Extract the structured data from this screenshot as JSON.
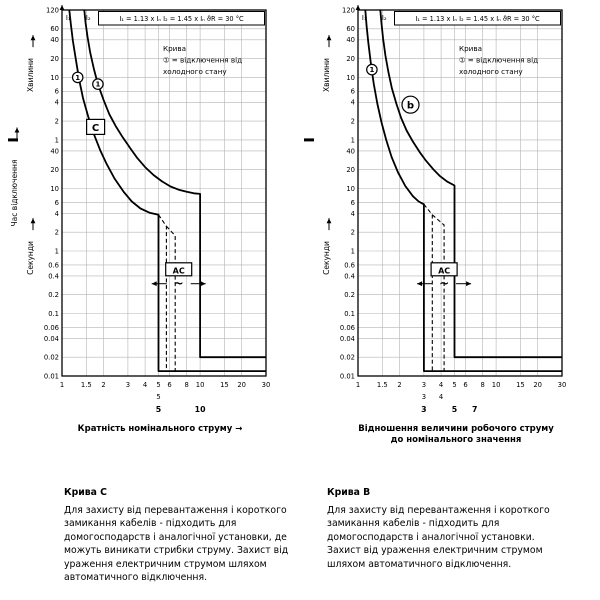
{
  "chart_data": [
    {
      "id": "curve-c-chart",
      "type": "line",
      "header": {
        "i1": "I₁",
        "i2": "I₂",
        "formula": "I₁ = 1.13 x Iₙ  I₂ = 1.45 x Iₙ  ϑR = 30 °C"
      },
      "note_lines": [
        "Крива",
        "① = відключення від",
        "холодного стану"
      ],
      "x_axis": {
        "label": "Кратність номінального струму  →",
        "scale": "log",
        "min": 1,
        "max": 30,
        "ticks": [
          {
            "v": 1,
            "l": "1"
          },
          {
            "v": 1.5,
            "l": "1.5"
          },
          {
            "v": 2,
            "l": "2"
          },
          {
            "v": 3,
            "l": "3"
          },
          {
            "v": 4,
            "l": "4"
          },
          {
            "v": 5,
            "l": "5"
          },
          {
            "v": 6,
            "l": "6"
          },
          {
            "v": 8,
            "l": "8"
          },
          {
            "v": 10,
            "l": "10"
          },
          {
            "v": 15,
            "l": "15"
          },
          {
            "v": 20,
            "l": "20"
          },
          {
            "v": 30,
            "l": "30"
          }
        ]
      },
      "y_axis": {
        "label_left": "Час відключення",
        "scale": "log",
        "min_s": 0.01,
        "max_s": 7200,
        "units": [
          {
            "label": "Хвилини",
            "from_s": 60,
            "to_s": 7200
          },
          {
            "label": "Секунди",
            "from_s": 0.01,
            "to_s": 60
          }
        ],
        "ticks": [
          {
            "v": 7200,
            "l": "120"
          },
          {
            "v": 3600,
            "l": "60"
          },
          {
            "v": 2400,
            "l": "40"
          },
          {
            "v": 1200,
            "l": "20"
          },
          {
            "v": 600,
            "l": "10"
          },
          {
            "v": 360,
            "l": "6"
          },
          {
            "v": 240,
            "l": "4"
          },
          {
            "v": 120,
            "l": "2"
          },
          {
            "v": 60,
            "l": "1"
          },
          {
            "v": 40,
            "l": "40"
          },
          {
            "v": 20,
            "l": "20"
          },
          {
            "v": 10,
            "l": "10"
          },
          {
            "v": 6,
            "l": "6"
          },
          {
            "v": 4,
            "l": "4"
          },
          {
            "v": 2,
            "l": "2"
          },
          {
            "v": 1,
            "l": "1"
          },
          {
            "v": 0.6,
            "l": "0.6"
          },
          {
            "v": 0.4,
            "l": "0.4"
          },
          {
            "v": 0.2,
            "l": "0.2"
          },
          {
            "v": 0.1,
            "l": "0.1"
          },
          {
            "v": 0.06,
            "l": "0.06"
          },
          {
            "v": 0.04,
            "l": "0.04"
          },
          {
            "v": 0.02,
            "l": "0.02"
          },
          {
            "v": 0.01,
            "l": "0.01"
          }
        ]
      },
      "curve_label": {
        "text": "C",
        "shape": "box",
        "x": 1.75,
        "t": 95
      },
      "curve_point_markers": [
        {
          "label": "1",
          "x": 1.3,
          "t": 600
        },
        {
          "label": "1",
          "x": 1.82,
          "t": 470
        }
      ],
      "ac_marker": {
        "label": "AC",
        "symbol": "~",
        "x": 7,
        "t_box": 0.5,
        "t_sym": 0.3
      },
      "instant_trip_range": {
        "min_multiple": 5,
        "max_multiple": 10
      },
      "instant_trip_markers": [
        {
          "text": "5",
          "x": 5,
          "row": 0,
          "bold": false
        },
        {
          "text": "5",
          "x": 5,
          "row": 1,
          "bold": true
        },
        {
          "text": "10",
          "x": 10,
          "row": 1,
          "bold": true
        }
      ],
      "series": [
        {
          "name": "lower-limit-cold",
          "style": "solid",
          "points": [
            [
              1.13,
              7200
            ],
            [
              1.16,
              4200
            ],
            [
              1.2,
              2300
            ],
            [
              1.26,
              1150
            ],
            [
              1.33,
              560
            ],
            [
              1.42,
              280
            ],
            [
              1.55,
              140
            ],
            [
              1.7,
              75
            ],
            [
              1.9,
              40
            ],
            [
              2.1,
              25
            ],
            [
              2.4,
              14.5
            ],
            [
              2.8,
              8.8
            ],
            [
              3.2,
              6.2
            ],
            [
              3.7,
              4.8
            ],
            [
              4.3,
              4.1
            ],
            [
              5,
              3.8
            ],
            [
              5,
              0.012
            ],
            [
              30,
              0.012
            ]
          ]
        },
        {
          "name": "upper-limit-cold",
          "style": "solid",
          "points": [
            [
              1.45,
              7200
            ],
            [
              1.48,
              4600
            ],
            [
              1.53,
              2700
            ],
            [
              1.6,
              1500
            ],
            [
              1.7,
              830
            ],
            [
              1.82,
              470
            ],
            [
              2,
              260
            ],
            [
              2.2,
              155
            ],
            [
              2.45,
              100
            ],
            [
              2.75,
              66
            ],
            [
              3.1,
              45
            ],
            [
              3.5,
              31
            ],
            [
              4,
              22
            ],
            [
              4.6,
              16.5
            ],
            [
              5.3,
              13
            ],
            [
              6.1,
              10.8
            ],
            [
              7,
              9.6
            ],
            [
              8,
              8.9
            ],
            [
              9,
              8.4
            ],
            [
              10,
              8.2
            ],
            [
              10,
              0.02
            ],
            [
              30,
              0.02
            ]
          ]
        },
        {
          "name": "tolerance-dash-1",
          "style": "dashed",
          "points": [
            [
              5,
              3.8
            ],
            [
              5.7,
              2.5
            ],
            [
              5.7,
              0.012
            ]
          ]
        },
        {
          "name": "tolerance-dash-2",
          "style": "dashed",
          "points": [
            [
              5.7,
              2.5
            ],
            [
              6.6,
              1.75
            ],
            [
              6.6,
              0.012
            ]
          ]
        }
      ]
    },
    {
      "id": "curve-b-chart",
      "type": "line",
      "header": {
        "i1": "I₁",
        "i2": "I₂",
        "formula": "I₁ = 1.13 x Iₙ  I₂ = 1.45 x Iₙ  ϑR = 30 °C"
      },
      "note_lines": [
        "Крива",
        "① = відключення від",
        "холодного стану"
      ],
      "x_axis": {
        "label": "Відношення величини робочого струму\nдо номінального значення",
        "scale": "log",
        "min": 1,
        "max": 30,
        "ticks": [
          {
            "v": 1,
            "l": "1"
          },
          {
            "v": 1.5,
            "l": "1.5"
          },
          {
            "v": 2,
            "l": "2"
          },
          {
            "v": 3,
            "l": "3"
          },
          {
            "v": 4,
            "l": "4"
          },
          {
            "v": 5,
            "l": "5"
          },
          {
            "v": 6,
            "l": "6"
          },
          {
            "v": 8,
            "l": "8"
          },
          {
            "v": 10,
            "l": "10"
          },
          {
            "v": 15,
            "l": "15"
          },
          {
            "v": 20,
            "l": "20"
          },
          {
            "v": 30,
            "l": "30"
          }
        ]
      },
      "y_axis": {
        "scale": "log",
        "min_s": 0.01,
        "max_s": 7200,
        "units": [
          {
            "label": "Хвилини",
            "from_s": 60,
            "to_s": 7200
          },
          {
            "label": "Секунди",
            "from_s": 0.01,
            "to_s": 60
          }
        ],
        "ticks": [
          {
            "v": 7200,
            "l": "120"
          },
          {
            "v": 3600,
            "l": "60"
          },
          {
            "v": 2400,
            "l": "40"
          },
          {
            "v": 1200,
            "l": "20"
          },
          {
            "v": 600,
            "l": "10"
          },
          {
            "v": 360,
            "l": "6"
          },
          {
            "v": 240,
            "l": "4"
          },
          {
            "v": 120,
            "l": "2"
          },
          {
            "v": 60,
            "l": "1"
          },
          {
            "v": 40,
            "l": "40"
          },
          {
            "v": 20,
            "l": "20"
          },
          {
            "v": 10,
            "l": "10"
          },
          {
            "v": 6,
            "l": "6"
          },
          {
            "v": 4,
            "l": "4"
          },
          {
            "v": 2,
            "l": "2"
          },
          {
            "v": 1,
            "l": "1"
          },
          {
            "v": 0.6,
            "l": "0.6"
          },
          {
            "v": 0.4,
            "l": "0.4"
          },
          {
            "v": 0.2,
            "l": "0.2"
          },
          {
            "v": 0.1,
            "l": "0.1"
          },
          {
            "v": 0.06,
            "l": "0.06"
          },
          {
            "v": 0.04,
            "l": "0.04"
          },
          {
            "v": 0.02,
            "l": "0.02"
          },
          {
            "v": 0.01,
            "l": "0.01"
          }
        ]
      },
      "curve_label": {
        "text": "b",
        "shape": "circle",
        "x": 2.4,
        "t": 220
      },
      "curve_point_markers": [
        {
          "label": "1",
          "x": 1.26,
          "t": 800
        }
      ],
      "ac_marker": {
        "label": "AC",
        "symbol": "~",
        "x": 4.2,
        "t_box": 0.5,
        "t_sym": 0.3
      },
      "instant_trip_range": {
        "min_multiple": 3,
        "max_multiple": 5
      },
      "instant_trip_markers": [
        {
          "text": "3",
          "x": 3,
          "row": 0,
          "bold": false
        },
        {
          "text": "4",
          "x": 4,
          "row": 0,
          "bold": false
        },
        {
          "text": "3",
          "x": 3,
          "row": 1,
          "bold": true
        },
        {
          "text": "5",
          "x": 5,
          "row": 1,
          "bold": true
        },
        {
          "text": "7",
          "x": 7,
          "row": 1,
          "bold": true
        }
      ],
      "series": [
        {
          "name": "lower-limit-cold",
          "style": "solid",
          "points": [
            [
              1.13,
              7200
            ],
            [
              1.155,
              4000
            ],
            [
              1.19,
              2100
            ],
            [
              1.24,
              1000
            ],
            [
              1.3,
              480
            ],
            [
              1.38,
              230
            ],
            [
              1.48,
              115
            ],
            [
              1.6,
              60
            ],
            [
              1.75,
              32
            ],
            [
              1.95,
              18
            ],
            [
              2.2,
              11
            ],
            [
              2.5,
              7.5
            ],
            [
              2.75,
              6.2
            ],
            [
              3,
              5.6
            ],
            [
              3,
              0.012
            ],
            [
              30,
              0.012
            ]
          ]
        },
        {
          "name": "upper-limit-cold",
          "style": "solid",
          "points": [
            [
              1.45,
              7200
            ],
            [
              1.48,
              4400
            ],
            [
              1.52,
              2500
            ],
            [
              1.58,
              1350
            ],
            [
              1.66,
              730
            ],
            [
              1.76,
              400
            ],
            [
              1.9,
              225
            ],
            [
              2.05,
              135
            ],
            [
              2.25,
              85
            ],
            [
              2.5,
              56
            ],
            [
              2.8,
              38
            ],
            [
              3.1,
              28
            ],
            [
              3.5,
              20.5
            ],
            [
              3.9,
              16
            ],
            [
              4.4,
              13
            ],
            [
              5,
              11.2
            ],
            [
              5,
              0.02
            ],
            [
              30,
              0.02
            ]
          ]
        },
        {
          "name": "tolerance-dash-1",
          "style": "dashed",
          "points": [
            [
              3,
              5.6
            ],
            [
              3.45,
              3.8
            ],
            [
              3.45,
              0.012
            ]
          ]
        },
        {
          "name": "tolerance-dash-2",
          "style": "dashed",
          "points": [
            [
              3.45,
              3.8
            ],
            [
              4.2,
              2.6
            ],
            [
              4.2,
              0.012
            ]
          ]
        }
      ]
    }
  ],
  "descriptions": [
    {
      "title": "Крива C",
      "body": "Для захисту від перевантаження і короткого замикання кабелів - підходить для домогосподарств і аналогічної установки, де можуть виникати стрибки струму. Захист від ураження електричним струмом шляхом автоматичного відключення."
    },
    {
      "title": "Крива B",
      "body": "Для захисту від перевантаження і короткого замикання кабелів - підходить для домогосподарств і аналогічної установки. Захист від ураження електричним струмом шляхом автоматичного відключення."
    }
  ]
}
